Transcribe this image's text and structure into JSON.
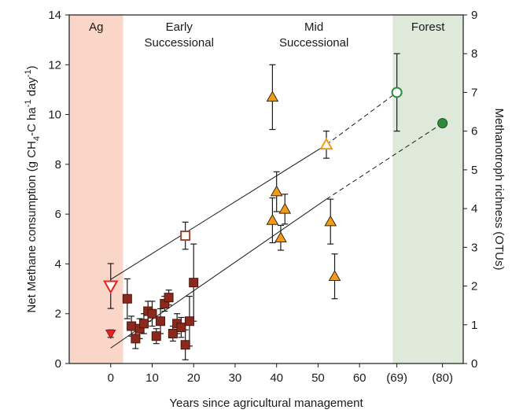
{
  "chart_data": {
    "type": "scatter",
    "title": "",
    "xlabel": "Years since agricultural management",
    "ylabel_left": "Net Methane consumption (g CH4-C ha-1 day-1)",
    "ylabel_right": "Methanotroph richness (OTUs)",
    "xlim": [
      -10,
      85
    ],
    "ylim_left": [
      0,
      14
    ],
    "ylim_right": [
      0,
      9
    ],
    "x_ticks": [
      {
        "x": 0,
        "label": "0"
      },
      {
        "x": 10,
        "label": "10"
      },
      {
        "x": 20,
        "label": "20"
      },
      {
        "x": 30,
        "label": "30"
      },
      {
        "x": 40,
        "label": "40"
      },
      {
        "x": 50,
        "label": "50"
      },
      {
        "x": 60,
        "label": "60"
      },
      {
        "x": 69,
        "label": "(69)"
      },
      {
        "x": 80,
        "label": "(80)"
      }
    ],
    "y_left_ticks": [
      0,
      2,
      4,
      6,
      8,
      10,
      12,
      14
    ],
    "y_right_ticks": [
      0,
      1,
      2,
      3,
      4,
      5,
      6,
      7,
      8,
      9
    ],
    "grid": false,
    "regions": [
      {
        "label": "Ag",
        "x_from": -10,
        "x_to": 3,
        "color": "#f9d6c7"
      },
      {
        "label": "Early\nSuccessional",
        "x_from": 3,
        "x_to": 30,
        "color": "#ffffff"
      },
      {
        "label": "Mid\nSuccessional",
        "x_from": 30,
        "x_to": 68,
        "color": "#ffffff"
      },
      {
        "label": "Forest",
        "x_from": 68,
        "x_to": 85,
        "color": "#dfe9d9"
      }
    ],
    "series": [
      {
        "axis": "left",
        "marker": "triangle-down",
        "fill": "#e8231e",
        "stroke": "#8b1a1a",
        "points": [
          {
            "x": 0,
            "y": 1.2,
            "err": 0.15
          }
        ]
      },
      {
        "axis": "left",
        "marker": "square",
        "fill": "#8b2a1c",
        "stroke": "#4a140c",
        "points": [
          {
            "x": 4,
            "y": 2.6,
            "err": 0.8
          },
          {
            "x": 5,
            "y": 1.5,
            "err": 0.4
          },
          {
            "x": 6,
            "y": 1.0,
            "err": 0.4
          },
          {
            "x": 7,
            "y": 1.4,
            "err": 0.4
          },
          {
            "x": 8,
            "y": 1.6,
            "err": 0.4
          },
          {
            "x": 9,
            "y": 2.1,
            "err": 0.4
          },
          {
            "x": 10,
            "y": 2.0,
            "err": 0.5
          },
          {
            "x": 11,
            "y": 1.1,
            "err": 0.3
          },
          {
            "x": 12,
            "y": 1.7,
            "err": 0.5
          },
          {
            "x": 13,
            "y": 2.4,
            "err": 0.3
          },
          {
            "x": 14,
            "y": 2.65,
            "err": 0.3
          },
          {
            "x": 15,
            "y": 1.2,
            "err": 0.3
          },
          {
            "x": 16,
            "y": 1.6,
            "err": 0.4
          },
          {
            "x": 17,
            "y": 1.45,
            "err": 0.4
          },
          {
            "x": 18,
            "y": 0.75,
            "err": 0.6
          },
          {
            "x": 19,
            "y": 1.7,
            "err": 1.0
          },
          {
            "x": 20,
            "y": 3.25,
            "err": 1.55
          }
        ]
      },
      {
        "axis": "left",
        "marker": "triangle",
        "fill": "#f29a1a",
        "stroke": "#3a2608",
        "points": [
          {
            "x": 39,
            "y": 10.7,
            "err": 1.3
          },
          {
            "x": 39,
            "y": 5.75,
            "err": 0.9
          },
          {
            "x": 40,
            "y": 6.9,
            "err": 0.8
          },
          {
            "x": 41,
            "y": 5.05,
            "err": 0.5
          },
          {
            "x": 42,
            "y": 6.2,
            "err": 0.6
          },
          {
            "x": 53,
            "y": 5.7,
            "err": 0.9
          },
          {
            "x": 54,
            "y": 3.5,
            "err": 0.9
          }
        ]
      },
      {
        "axis": "left",
        "marker": "circle",
        "fill": "#2e8b3e",
        "stroke": "#1b4d22",
        "points": [
          {
            "x": 80,
            "y": 9.65,
            "err": 0
          }
        ]
      },
      {
        "axis": "right",
        "marker": "triangle-down-open",
        "fill": "#ffffff",
        "stroke": "#e8231e",
        "points": [
          {
            "x": 0,
            "y": 2.0,
            "err": 0.58
          }
        ]
      },
      {
        "axis": "right",
        "marker": "square-open",
        "fill": "#ffffff",
        "stroke": "#a0452e",
        "points": [
          {
            "x": 18,
            "y": 3.3,
            "err": 0.35
          }
        ]
      },
      {
        "axis": "right",
        "marker": "triangle-open",
        "fill": "#ffffff",
        "stroke": "#f29a1a",
        "points": [
          {
            "x": 52,
            "y": 5.65,
            "err": 0.35
          }
        ]
      },
      {
        "axis": "right",
        "marker": "circle-open",
        "fill": "#ffffff",
        "stroke": "#2e8b3e",
        "points": [
          {
            "x": 69,
            "y": 7.0,
            "err": 1.0
          }
        ]
      }
    ],
    "trend_lines": [
      {
        "axis": "left",
        "from": {
          "x": 0,
          "y": 0.62
        },
        "solid_to": {
          "x": 52,
          "y": 6.6
        },
        "dashed_to": {
          "x": 80,
          "y": 9.65
        }
      },
      {
        "axis": "right",
        "from": {
          "x": 0,
          "y": 2.17
        },
        "solid_to": {
          "x": 52,
          "y": 5.65
        },
        "dashed_to": {
          "x": 69,
          "y": 7.0
        }
      }
    ]
  }
}
